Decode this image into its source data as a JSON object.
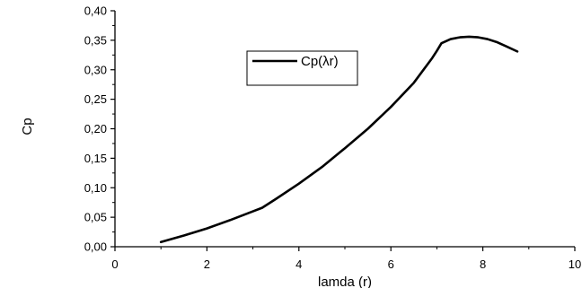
{
  "chart_data": {
    "type": "line",
    "title": "",
    "xlabel": "lamda (r)",
    "ylabel": "Cp",
    "xlim": [
      0,
      10
    ],
    "ylim": [
      0,
      0.4
    ],
    "x_ticks": [
      0,
      2,
      4,
      6,
      8,
      10
    ],
    "y_ticks": [
      0.0,
      0.05,
      0.1,
      0.15,
      0.2,
      0.25,
      0.3,
      0.35,
      0.4
    ],
    "x_tick_labels": [
      "0",
      "2",
      "4",
      "6",
      "8",
      "10"
    ],
    "y_tick_labels": [
      "0,00",
      "0,05",
      "0,10",
      "0,15",
      "0,20",
      "0,25",
      "0,30",
      "0,35",
      "0,40"
    ],
    "grid": false,
    "legend_position": "top-center",
    "series": [
      {
        "name": "Cp(λr)",
        "color": "#000000",
        "x": [
          1.0,
          1.5,
          2.0,
          2.5,
          3.0,
          3.2,
          3.5,
          4.0,
          4.5,
          5.0,
          5.5,
          6.0,
          6.5,
          6.9,
          7.0,
          7.1,
          7.3,
          7.5,
          7.7,
          7.9,
          8.1,
          8.3,
          8.5,
          8.75
        ],
        "y": [
          0.008,
          0.019,
          0.031,
          0.045,
          0.06,
          0.066,
          0.081,
          0.107,
          0.135,
          0.167,
          0.2,
          0.237,
          0.278,
          0.32,
          0.332,
          0.345,
          0.352,
          0.355,
          0.356,
          0.355,
          0.352,
          0.347,
          0.34,
          0.331
        ]
      }
    ]
  }
}
